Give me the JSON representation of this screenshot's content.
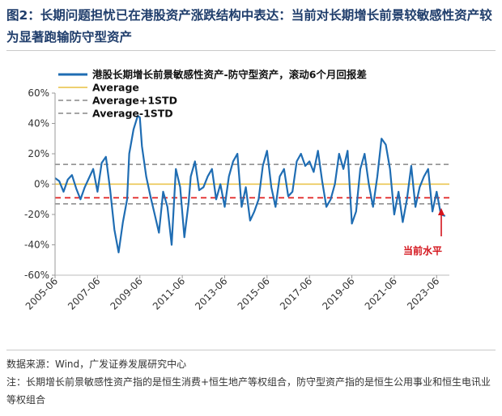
{
  "figure": {
    "title": "图2：长期问题担忧已在港股资产涨跌结构中表达：当前对长期增长前景较敏感性资产较为显著跑输防守型资产",
    "source": "数据来源：Wind，广发证券发展研究中心",
    "note": "注：长期增长前景敏感性资产指的是恒生消费+恒生地产等权组合，防守型资产指的是恒生公用事业和恒生电讯业等权组合"
  },
  "chart_data": {
    "type": "line",
    "title": "",
    "xlabel": "",
    "ylabel": "",
    "ylim": [
      -60,
      60
    ],
    "yticks": [
      -60,
      -40,
      -20,
      0,
      20,
      40,
      60
    ],
    "ytick_labels": [
      "-60%",
      "-40%",
      "-20%",
      "0%",
      "20%",
      "40%",
      "60%"
    ],
    "x_tick_labels": [
      "2005-06",
      "2007-06",
      "2009-06",
      "2011-06",
      "2013-06",
      "2015-06",
      "2017-06",
      "2019-06",
      "2021-06",
      "2023-06"
    ],
    "x_tick_years": [
      2005.5,
      2007.5,
      2009.5,
      2011.5,
      2013.5,
      2015.5,
      2017.5,
      2019.5,
      2021.5,
      2023.5
    ],
    "xlim": [
      2005.5,
      2024.1
    ],
    "legend": [
      "港股长期增长前景敏感性资产-防守型资产，滚动6个月回报差",
      "Average",
      "Average+1STD",
      "Average-1STD"
    ],
    "colors": {
      "series": "#1f6db3",
      "average": "#e8c040",
      "std": "#888888",
      "current": "#e02020",
      "annotation": "#d4141c"
    },
    "average": 0,
    "average_plus_1std": 13,
    "average_minus_1std": -13,
    "current_level": -9,
    "annotation": "当前水平",
    "series": [
      {
        "name": "港股长期增长前景敏感性资产-防守型资产，滚动6个月回报差",
        "x": [
          2005.5,
          2005.7,
          2005.9,
          2006.1,
          2006.3,
          2006.5,
          2006.7,
          2006.9,
          2007.1,
          2007.3,
          2007.5,
          2007.7,
          2007.9,
          2008.1,
          2008.3,
          2008.5,
          2008.7,
          2008.9,
          2009.0,
          2009.2,
          2009.4,
          2009.5,
          2009.6,
          2009.8,
          2010.0,
          2010.2,
          2010.4,
          2010.6,
          2010.8,
          2011.0,
          2011.2,
          2011.4,
          2011.6,
          2011.8,
          2011.9,
          2012.1,
          2012.3,
          2012.5,
          2012.7,
          2012.9,
          2013.1,
          2013.3,
          2013.5,
          2013.7,
          2013.9,
          2014.1,
          2014.3,
          2014.5,
          2014.7,
          2014.9,
          2015.1,
          2015.3,
          2015.5,
          2015.7,
          2015.9,
          2016.1,
          2016.3,
          2016.5,
          2016.7,
          2016.9,
          2017.1,
          2017.3,
          2017.5,
          2017.7,
          2017.9,
          2018.1,
          2018.3,
          2018.5,
          2018.7,
          2018.9,
          2019.1,
          2019.3,
          2019.5,
          2019.7,
          2019.9,
          2020.1,
          2020.3,
          2020.5,
          2020.7,
          2020.9,
          2021.1,
          2021.3,
          2021.5,
          2021.7,
          2021.9,
          2022.1,
          2022.3,
          2022.5,
          2022.7,
          2022.9,
          2023.1,
          2023.3,
          2023.5,
          2023.7,
          2023.9
        ],
        "values": [
          4,
          2,
          -5,
          3,
          6,
          -3,
          -10,
          -2,
          4,
          10,
          -5,
          14,
          18,
          -4,
          -30,
          -45,
          -25,
          -10,
          20,
          36,
          45,
          44,
          25,
          5,
          -8,
          -20,
          -32,
          -5,
          -15,
          -40,
          10,
          -2,
          -35,
          -12,
          5,
          15,
          -4,
          -2,
          5,
          10,
          -10,
          0,
          -15,
          5,
          15,
          20,
          -15,
          -2,
          -24,
          -18,
          -10,
          12,
          22,
          -2,
          -15,
          5,
          10,
          -8,
          -5,
          15,
          20,
          12,
          15,
          8,
          22,
          2,
          -15,
          -10,
          0,
          20,
          10,
          22,
          -26,
          -18,
          10,
          20,
          0,
          -15,
          5,
          30,
          26,
          10,
          -20,
          -5,
          -25,
          -10,
          12,
          -15,
          -2,
          5,
          10,
          -18,
          -5,
          -20,
          -21
        ]
      }
    ]
  }
}
